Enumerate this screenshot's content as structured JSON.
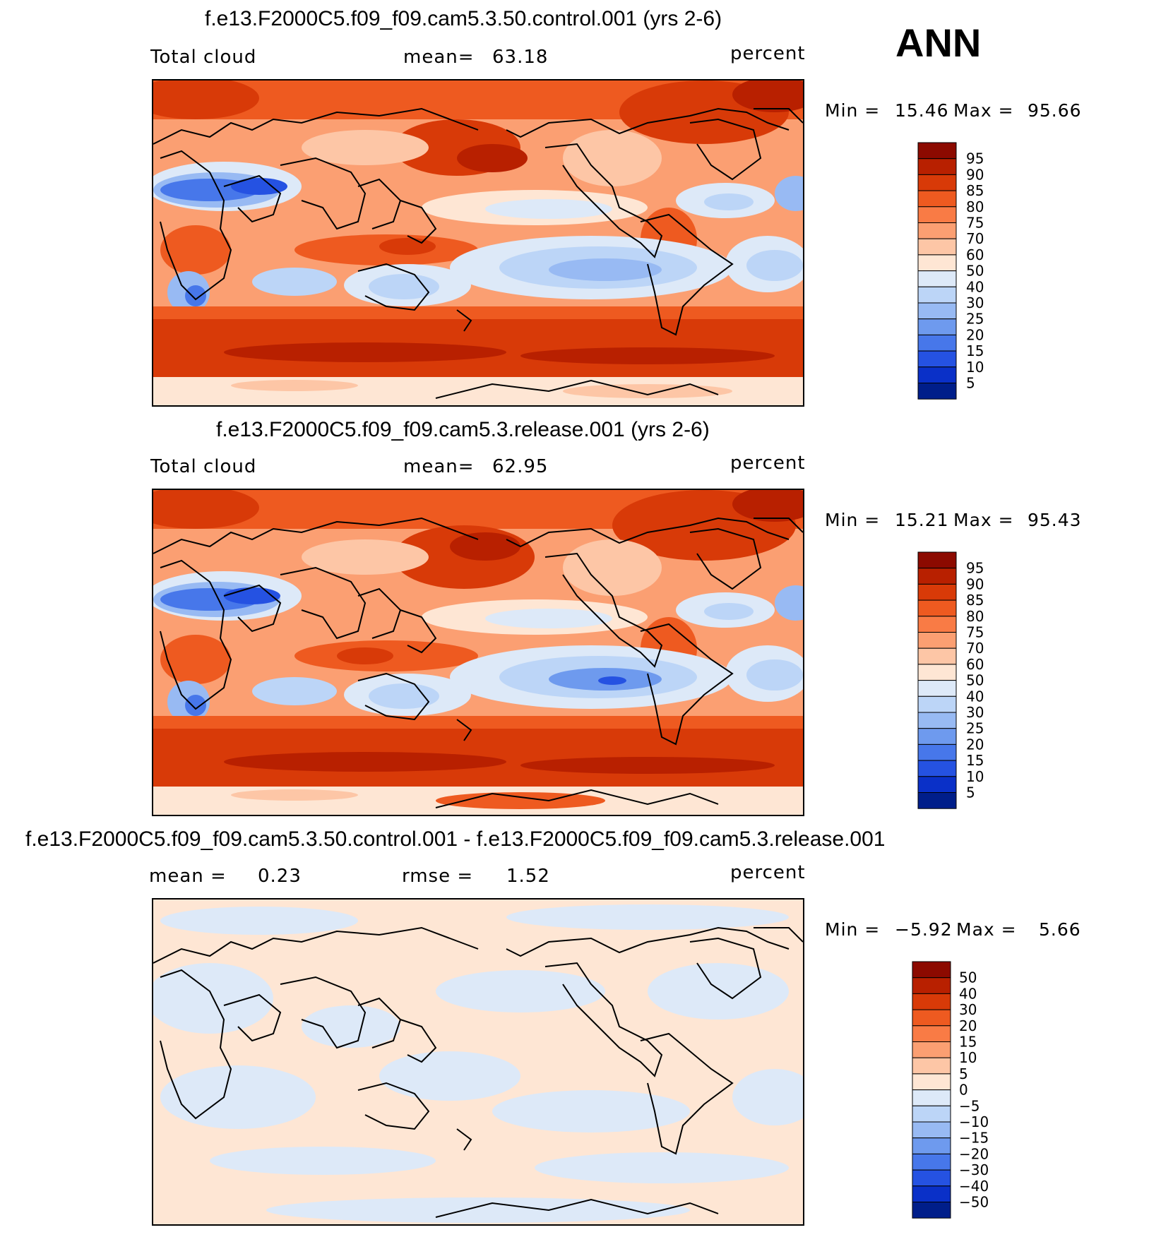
{
  "season": "ANN",
  "panels": [
    {
      "title": "f.e13.F2000C5.f09_f09.cam5.3.50.control.001 (yrs 2-6)",
      "left_label": "Total cloud",
      "stat1_label": "mean=",
      "stat1_value": "63.18",
      "units": "percent",
      "min_label": "Min =",
      "min_value": "15.46",
      "max_label": "Max =",
      "max_value": "95.66",
      "colorbar": {
        "labels": [
          "95",
          "90",
          "85",
          "80",
          "75",
          "70",
          "60",
          "50",
          "40",
          "30",
          "25",
          "20",
          "15",
          "10",
          "5"
        ],
        "colors": [
          "#8c0a00",
          "#b82000",
          "#d83a08",
          "#ee5a20",
          "#f97b45",
          "#fb9f72",
          "#fdc6a6",
          "#fee6d4",
          "#dde9f8",
          "#bcd5f7",
          "#98baf3",
          "#6e9aee",
          "#4777ea",
          "#2552e2",
          "#0a30c8",
          "#001e8a"
        ]
      }
    },
    {
      "title": "f.e13.F2000C5.f09_f09.cam5.3.release.001 (yrs 2-6)",
      "left_label": "Total cloud",
      "stat1_label": "mean=",
      "stat1_value": "62.95",
      "units": "percent",
      "min_label": "Min =",
      "min_value": "15.21",
      "max_label": "Max =",
      "max_value": "95.43",
      "colorbar": {
        "labels": [
          "95",
          "90",
          "85",
          "80",
          "75",
          "70",
          "60",
          "50",
          "40",
          "30",
          "25",
          "20",
          "15",
          "10",
          "5"
        ],
        "colors": [
          "#8c0a00",
          "#b82000",
          "#d83a08",
          "#ee5a20",
          "#f97b45",
          "#fb9f72",
          "#fdc6a6",
          "#fee6d4",
          "#dde9f8",
          "#bcd5f7",
          "#98baf3",
          "#6e9aee",
          "#4777ea",
          "#2552e2",
          "#0a30c8",
          "#001e8a"
        ]
      }
    },
    {
      "title": "f.e13.F2000C5.f09_f09.cam5.3.50.control.001 - f.e13.F2000C5.f09_f09.cam5.3.release.001",
      "left_label": "mean =",
      "left_value": "0.23",
      "stat1_label": "rmse =",
      "stat1_value": "1.52",
      "units": "percent",
      "min_label": "Min =",
      "min_value": "−5.92",
      "max_label": "Max =",
      "max_value": "5.66",
      "colorbar": {
        "labels": [
          "50",
          "40",
          "30",
          "20",
          "15",
          "10",
          "5",
          "0",
          "−5",
          "−10",
          "−15",
          "−20",
          "−30",
          "−40",
          "−50"
        ],
        "colors": [
          "#8c0a00",
          "#b82000",
          "#d83a08",
          "#ee5a20",
          "#f97b45",
          "#fb9f72",
          "#fdc6a6",
          "#fee6d4",
          "#dde9f8",
          "#bcd5f7",
          "#98baf3",
          "#6e9aee",
          "#4777ea",
          "#2552e2",
          "#0a30c8",
          "#001e8a"
        ]
      }
    }
  ],
  "palette": {
    "deep_red": "#b82000",
    "red": "#d83a08",
    "orange": "#ee5a20",
    "salmon": "#fb9f72",
    "peach": "#fdc6a6",
    "cream": "#fee6d4",
    "pale_blue": "#dde9f8",
    "light_blue": "#bcd5f7",
    "mid_blue": "#6e9aee",
    "blue": "#2552e2"
  }
}
